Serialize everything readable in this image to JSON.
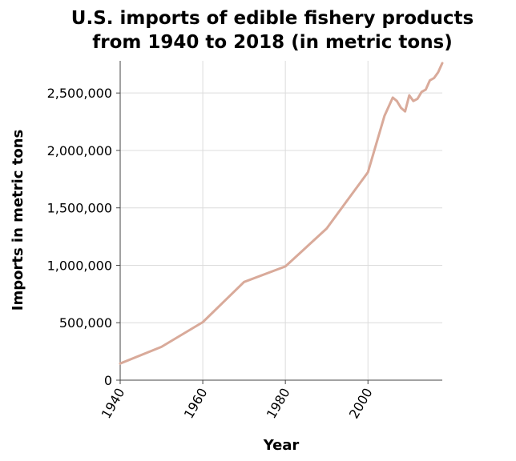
{
  "chart_data": {
    "type": "line",
    "title_lines": [
      "U.S. imports of edible fishery products",
      "from 1940 to 2018 (in metric tons)"
    ],
    "xlabel": "Year",
    "ylabel": "Imports in metric tons",
    "xlim": [
      1940,
      2018
    ],
    "ylim": [
      0,
      2780000
    ],
    "x_ticks": [
      1940,
      1960,
      1980,
      2000
    ],
    "x_tick_labels": [
      "1940",
      "1960",
      "1980",
      "2000"
    ],
    "y_ticks": [
      0,
      500000,
      1000000,
      1500000,
      2000000,
      2500000
    ],
    "y_tick_labels": [
      "0",
      "500,000",
      "1,000,000",
      "1,500,000",
      "2,000,000",
      "2,500,000"
    ],
    "grid": true,
    "line_color": "#d9aa9a",
    "series": [
      {
        "x": [
          1940,
          1950,
          1960,
          1970,
          1980,
          1990,
          2000,
          2004,
          2006,
          2007,
          2008,
          2009,
          2010,
          2011,
          2012,
          2013,
          2014,
          2015,
          2016,
          2017,
          2018
        ],
        "values": [
          145000,
          290000,
          505000,
          855000,
          990000,
          1320000,
          1810000,
          2300000,
          2460000,
          2430000,
          2370000,
          2340000,
          2480000,
          2430000,
          2450000,
          2510000,
          2530000,
          2610000,
          2630000,
          2680000,
          2760000
        ]
      }
    ]
  }
}
